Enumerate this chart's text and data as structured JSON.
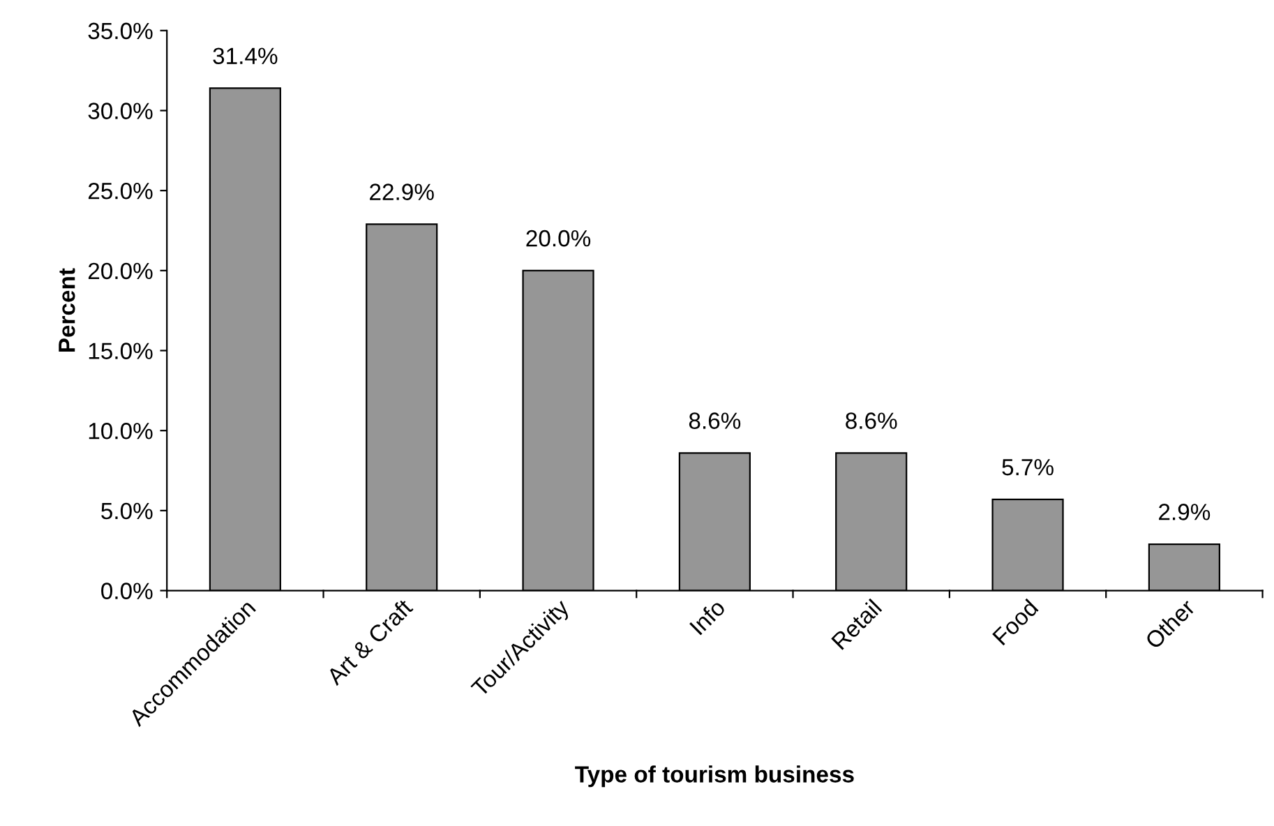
{
  "chart_data": {
    "type": "bar",
    "xlabel": "Type of tourism business",
    "ylabel": "Percent",
    "categories": [
      "Accommodation",
      "Art & Craft",
      "Tour/Activity",
      "Info",
      "Retail",
      "Food",
      "Other"
    ],
    "values": [
      31.4,
      22.9,
      20.0,
      8.6,
      8.6,
      5.7,
      2.9
    ],
    "value_labels": [
      "31.4%",
      "22.9%",
      "20.0%",
      "8.6%",
      "8.6%",
      "5.7%",
      "2.9%"
    ],
    "color": "#969696",
    "ylim": [
      0,
      35
    ],
    "yticks": [
      {
        "value": 0,
        "label": "0.0%"
      },
      {
        "value": 5,
        "label": "5.0%"
      },
      {
        "value": 10,
        "label": "10.0%"
      },
      {
        "value": 15,
        "label": "15.0%"
      },
      {
        "value": 20,
        "label": "20.0%"
      },
      {
        "value": 25,
        "label": "25.0%"
      },
      {
        "value": 30,
        "label": "30.0%"
      },
      {
        "value": 35,
        "label": "35.0%"
      }
    ],
    "grid": false
  }
}
